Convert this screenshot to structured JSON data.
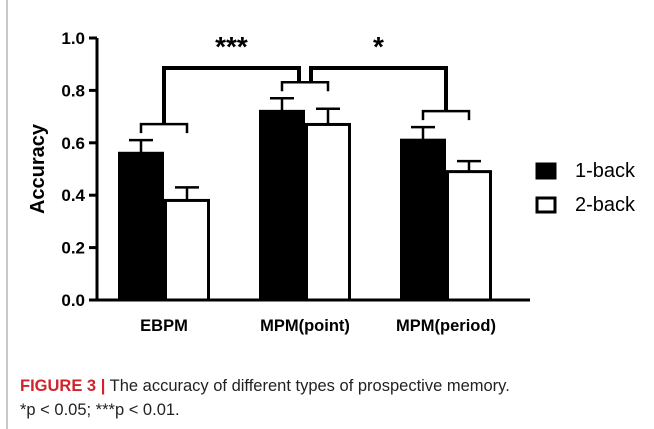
{
  "chart_data": {
    "type": "bar",
    "categories": [
      "EBPM",
      "MPM(point)",
      "MPM(period)"
    ],
    "series": [
      {
        "name": "1-back",
        "values": [
          0.56,
          0.72,
          0.61
        ],
        "errors": [
          0.05,
          0.05,
          0.05
        ],
        "fill": "#000000"
      },
      {
        "name": "2-back",
        "values": [
          0.38,
          0.67,
          0.49
        ],
        "errors": [
          0.05,
          0.06,
          0.04
        ],
        "fill": "#ffffff"
      }
    ],
    "ylabel": "Accuracy",
    "xlabel": "",
    "ylim": [
      0,
      1.0
    ],
    "yticks": [
      "0.0",
      "0.2",
      "0.4",
      "0.6",
      "0.8",
      "1.0"
    ],
    "legend_position": "right",
    "grid": false,
    "annotations": [
      {
        "label": "***",
        "between": [
          "EBPM",
          "MPM(point)"
        ]
      },
      {
        "label": "*",
        "between": [
          "MPM(point)",
          "MPM(period)"
        ]
      }
    ]
  },
  "caption": {
    "label": "FIGURE 3",
    "separator": "|",
    "text": "The accuracy of different types of prospective memory.",
    "note": "*p < 0.05; ***p < 0.01."
  }
}
